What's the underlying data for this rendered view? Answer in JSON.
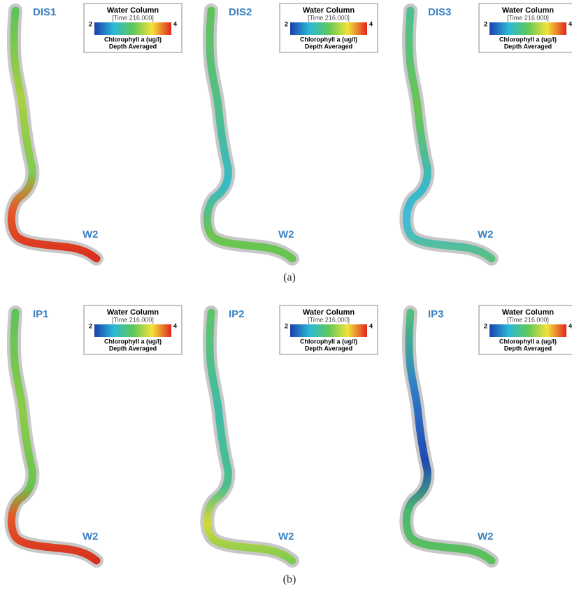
{
  "panels": [
    {
      "label": "DIS1",
      "legend": {
        "title": "Water Column",
        "time": "[Time 216.000]",
        "min": 2,
        "max": 4,
        "variable": "Chlorophyll a (ug/l)",
        "note": "Depth Averaged"
      },
      "station": "W2"
    },
    {
      "label": "DIS2",
      "legend": {
        "title": "Water Column",
        "time": "[Time 216.000]",
        "min": 2,
        "max": 4,
        "variable": "Chlorophyll a (ug/l)",
        "note": "Depth Averaged"
      },
      "station": "W2"
    },
    {
      "label": "DIS3",
      "legend": {
        "title": "Water Column",
        "time": "[Time 216.000]",
        "min": 2,
        "max": 4,
        "variable": "Chlorophyll a (ug/l)",
        "note": "Depth Averaged"
      },
      "station": "W2"
    },
    {
      "label": "IP1",
      "legend": {
        "title": "Water Column",
        "time": "[Time 216.000]",
        "min": 2,
        "max": 4,
        "variable": "Chlorophyll a (ug/l)",
        "note": "Depth Averaged"
      },
      "station": "W2"
    },
    {
      "label": "IP2",
      "legend": {
        "title": "Water Column",
        "time": "[Time 216.000]",
        "min": 2,
        "max": 4,
        "variable": "Chlorophyll a (ug/l)",
        "note": "Depth Averaged"
      },
      "station": "W2"
    },
    {
      "label": "IP3",
      "legend": {
        "title": "Water Column",
        "time": "[Time 216.000]",
        "min": 2,
        "max": 4,
        "variable": "Chlorophyll a (ug/l)",
        "note": "Depth Averaged"
      },
      "station": "W2"
    }
  ],
  "captions": [
    "(a)",
    "(b)"
  ]
}
